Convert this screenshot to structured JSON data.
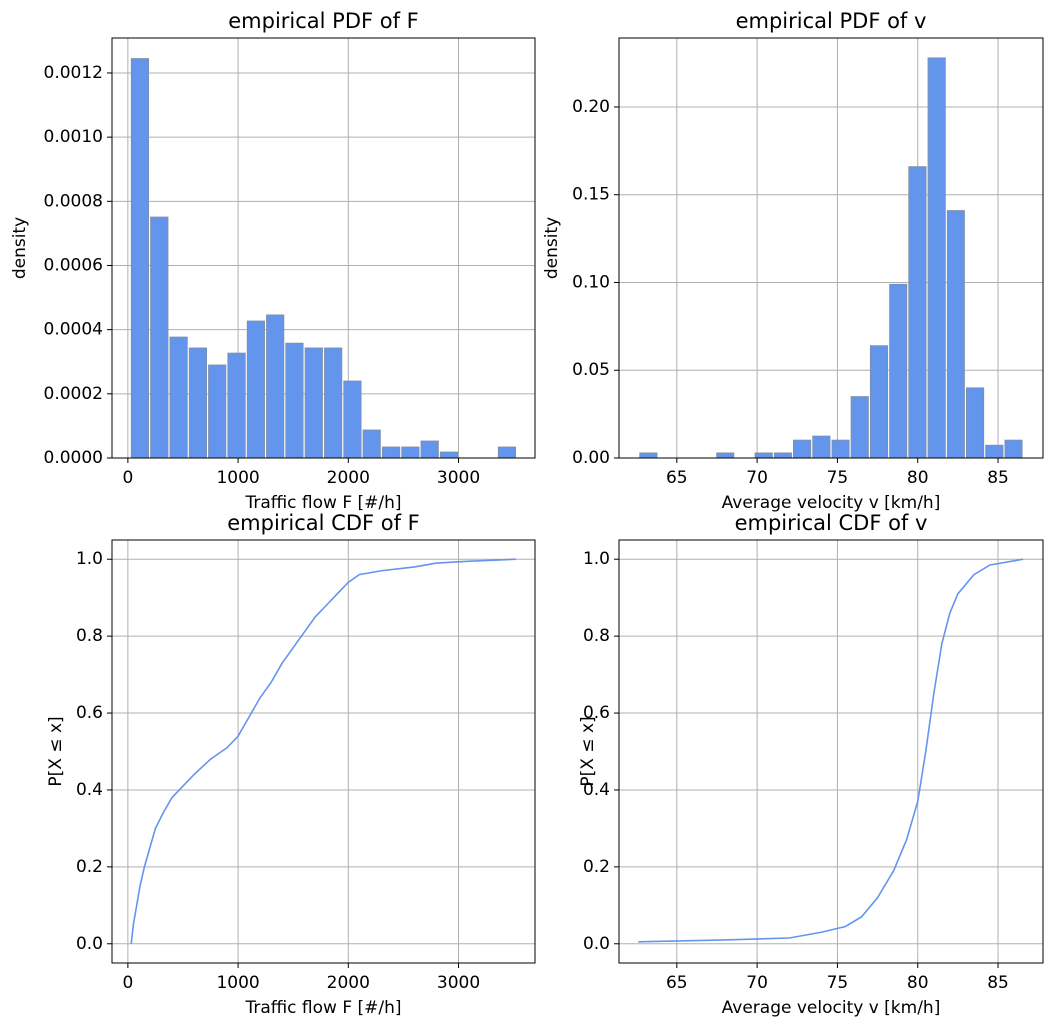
{
  "chart_data": [
    {
      "type": "histogram",
      "title": "empirical PDF of F",
      "xlabel": "Traffic flow F [#/h]",
      "ylabel": "density",
      "bins": [
        22,
        197,
        373,
        548,
        723,
        898,
        1074,
        1249,
        1424,
        1599,
        1775,
        1950,
        2125,
        2300,
        2476,
        2651,
        2826,
        3001,
        3177,
        3352,
        3527
      ],
      "values": [
        0.001245,
        0.000751,
        0.000377,
        0.000343,
        0.00029,
        0.000327,
        0.000427,
        0.000446,
        0.000358,
        0.000343,
        0.000343,
        0.00024,
        8.73e-05,
        3.43e-05,
        3.43e-05,
        5.3e-05,
        1.87e-05,
        0,
        0,
        3.43e-05
      ],
      "color": "#6495ed",
      "edgecolor": "#7f8fa6",
      "xlim": [
        -144,
        3694
      ],
      "ylim": [
        0,
        0.001309
      ],
      "xticks": [
        0,
        1000,
        2000,
        3000
      ],
      "yticks": [
        {
          "value": 0,
          "label": "0.0000"
        },
        0.0002,
        0.0004,
        0.0006,
        0.0008,
        {
          "value": 0.001,
          "label": "0.0010"
        },
        0.0012
      ],
      "grid": true
    },
    {
      "type": "histogram",
      "title": "empirical PDF of v",
      "xlabel": "Average velocity v [km/h]",
      "ylabel": "density",
      "bins": [
        62.63,
        63.83,
        65.02,
        66.22,
        67.42,
        68.61,
        69.81,
        71.01,
        72.2,
        73.4,
        74.6,
        75.79,
        76.99,
        78.19,
        79.38,
        80.58,
        81.78,
        82.97,
        84.17,
        85.37,
        86.56
      ],
      "values": [
        0.0029,
        0,
        0,
        0,
        0.0029,
        0,
        0.0029,
        0.0029,
        0.0102,
        0.0125,
        0.0102,
        0.035,
        0.064,
        0.099,
        0.166,
        0.228,
        0.141,
        0.04,
        0.0073,
        0.0102
      ],
      "color": "#6495ed",
      "edgecolor": "#7f8fa6",
      "xlim": [
        61.4,
        87.8
      ],
      "ylim": [
        0,
        0.2393
      ],
      "xticks": [
        65,
        70,
        75,
        80,
        85
      ],
      "yticks": [
        {
          "value": 0,
          "label": "0.00"
        },
        0.05,
        {
          "value": 0.1,
          "label": "0.10"
        },
        0.15,
        {
          "value": 0.2,
          "label": "0.20"
        }
      ],
      "grid": true
    },
    {
      "type": "line",
      "title": "empirical CDF of F",
      "xlabel": "Traffic flow F [#/h]",
      "ylabel": "P[X ≤ x]",
      "x": [
        30,
        50,
        80,
        110,
        150,
        200,
        250,
        320,
        400,
        500,
        600,
        750,
        900,
        1000,
        1100,
        1200,
        1300,
        1400,
        1500,
        1600,
        1700,
        1800,
        1900,
        2000,
        2100,
        2300,
        2600,
        2800,
        3100,
        3520
      ],
      "values": [
        0,
        0.05,
        0.1,
        0.15,
        0.2,
        0.25,
        0.3,
        0.34,
        0.38,
        0.41,
        0.44,
        0.48,
        0.51,
        0.54,
        0.59,
        0.64,
        0.68,
        0.73,
        0.77,
        0.81,
        0.85,
        0.88,
        0.91,
        0.94,
        0.96,
        0.97,
        0.98,
        0.99,
        0.995,
        1.0
      ],
      "color": "#6495ed",
      "xlim": [
        -144,
        3694
      ],
      "ylim": [
        -0.05,
        1.05
      ],
      "xticks": [
        0,
        1000,
        2000,
        3000
      ],
      "yticks": [
        {
          "value": 0,
          "label": "0.0"
        },
        0.2,
        0.4,
        0.6,
        0.8,
        {
          "value": 1,
          "label": "1.0"
        }
      ],
      "grid": true
    },
    {
      "type": "line",
      "title": "empirical CDF of v",
      "xlabel": "Average velocity v [km/h]",
      "ylabel": "P[X ≤ x]",
      "x": [
        62.6,
        68,
        72,
        74,
        75.5,
        76.5,
        77.5,
        78.5,
        79.3,
        80,
        80.5,
        81,
        81.5,
        82,
        82.5,
        83.5,
        84.5,
        86.56
      ],
      "values": [
        0.005,
        0.01,
        0.015,
        0.03,
        0.045,
        0.07,
        0.12,
        0.19,
        0.27,
        0.37,
        0.5,
        0.65,
        0.78,
        0.86,
        0.91,
        0.96,
        0.985,
        1.0
      ],
      "color": "#6495ed",
      "xlim": [
        61.4,
        87.8
      ],
      "ylim": [
        -0.05,
        1.05
      ],
      "xticks": [
        65,
        70,
        75,
        80,
        85
      ],
      "yticks": [
        {
          "value": 0,
          "label": "0.0"
        },
        0.2,
        0.4,
        0.6,
        0.8,
        {
          "value": 1,
          "label": "1.0"
        }
      ],
      "grid": true
    }
  ]
}
